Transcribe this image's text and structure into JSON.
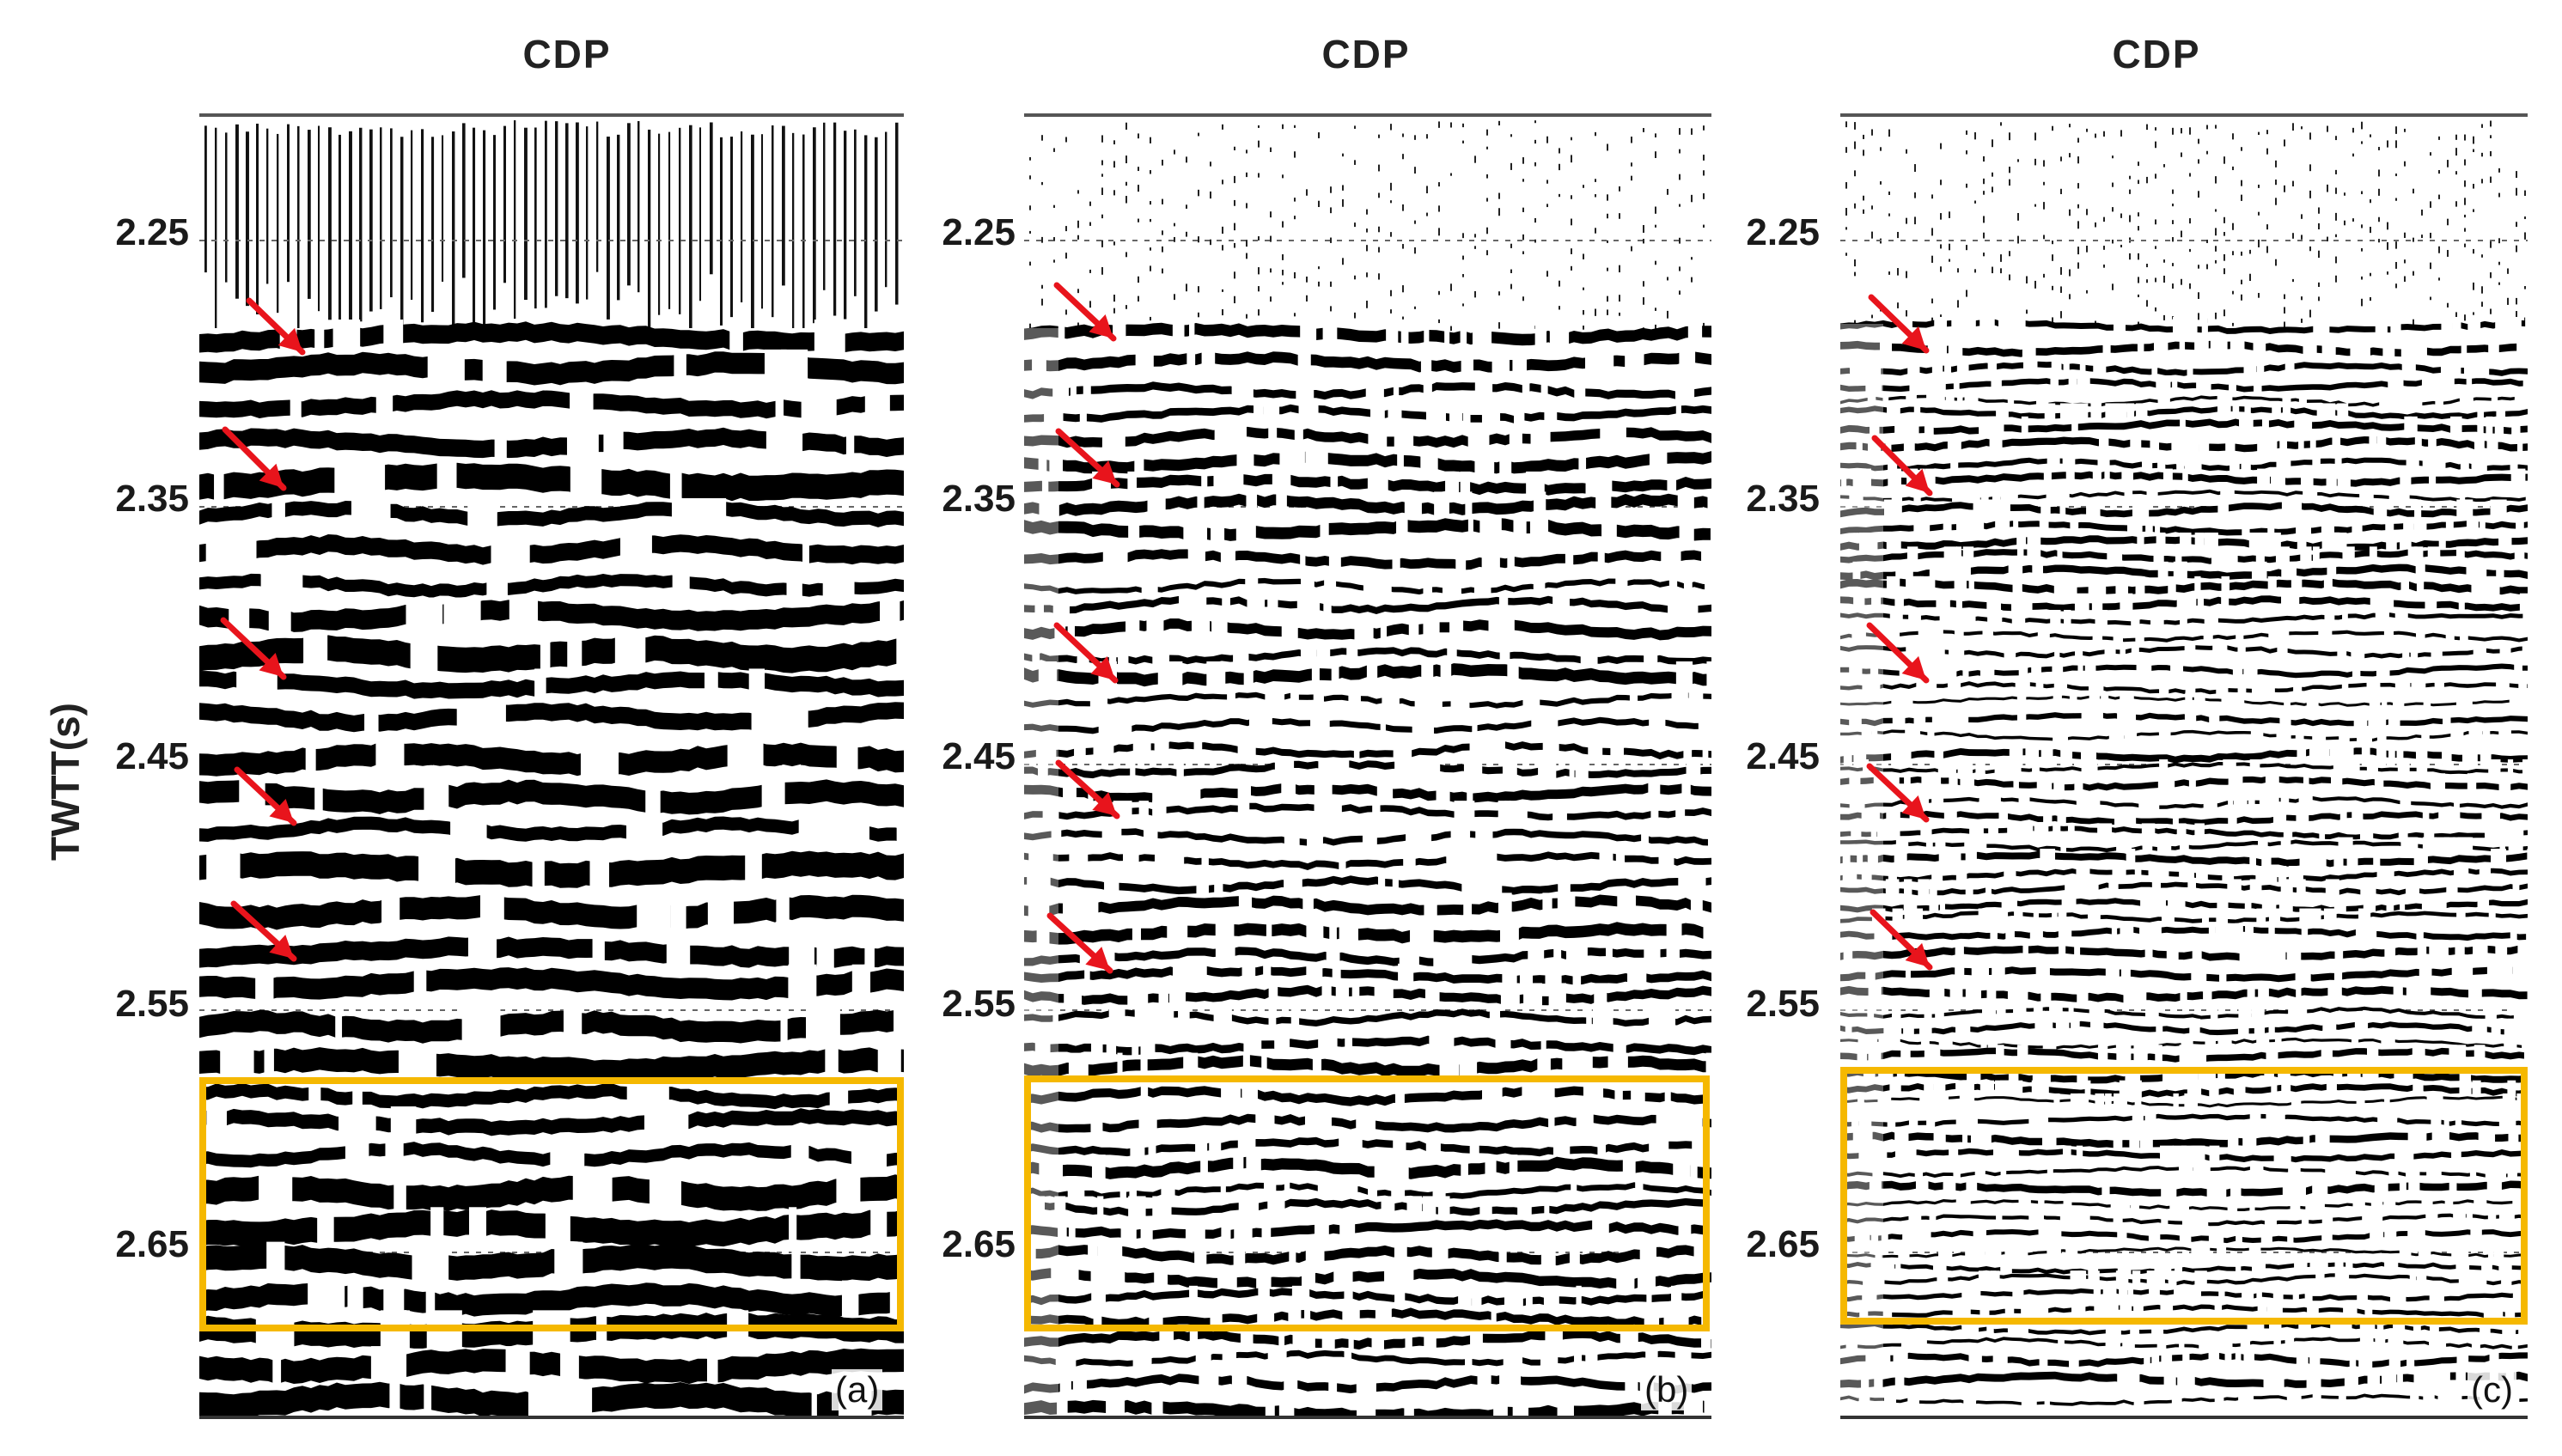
{
  "figure": {
    "ylabel": "TWTT(s)",
    "panels": [
      {
        "id": "a",
        "title": "CDP",
        "letter": "(a)",
        "ticks": [
          "2.25",
          "2.35",
          "2.45",
          "2.55",
          "2.65"
        ]
      },
      {
        "id": "b",
        "title": "CDP",
        "letter": "(b)",
        "ticks": [
          "2.25",
          "2.35",
          "2.45",
          "2.55",
          "2.65"
        ]
      },
      {
        "id": "c",
        "title": "CDP",
        "letter": "(c)",
        "ticks": [
          "2.25",
          "2.35",
          "2.45",
          "2.55",
          "2.65"
        ]
      }
    ],
    "arrow_count_per_panel": 5,
    "colors": {
      "arrow": "#e8141c",
      "highlight_box": "#f5b800",
      "trace": "#000000"
    }
  }
}
